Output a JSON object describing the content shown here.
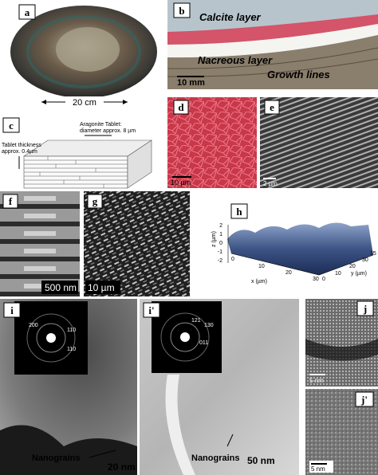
{
  "panels": [
    {
      "label": "a",
      "texts": [
        "20 cm"
      ]
    },
    {
      "label": "b",
      "texts": [
        "Calcite layer",
        "Nacreous layer",
        "Growth lines",
        "10 mm"
      ]
    },
    {
      "label": "c",
      "texts": [
        "Aragonite Tablet:",
        "diameter approx. 8 µm",
        "Tablet thickness",
        "approx. 0.4µm"
      ]
    },
    {
      "label": "d",
      "texts": [
        "10 µm"
      ]
    },
    {
      "label": "e",
      "texts": [
        "2 µm"
      ]
    },
    {
      "label": "f",
      "texts": [
        "500 nm"
      ]
    },
    {
      "label": "g",
      "texts": [
        "10 µm"
      ]
    },
    {
      "label": "h",
      "texts": [
        "z (µm)",
        "x (µm)",
        "y (µm)",
        "2",
        "1",
        "0",
        "-1",
        "-2",
        "0",
        "10",
        "20",
        "30",
        "0",
        "10",
        "20",
        "30",
        "35"
      ]
    },
    {
      "label": "i",
      "texts": [
        "200",
        "110",
        "110",
        "Nanograins",
        "20 nm"
      ]
    },
    {
      "label": "i'",
      "texts": [
        "121",
        "130",
        "011",
        "Nanograins",
        "50 nm"
      ]
    },
    {
      "label": "j",
      "texts": [
        "5 nm"
      ]
    },
    {
      "label": "j'",
      "texts": [
        "5 nm"
      ]
    }
  ]
}
